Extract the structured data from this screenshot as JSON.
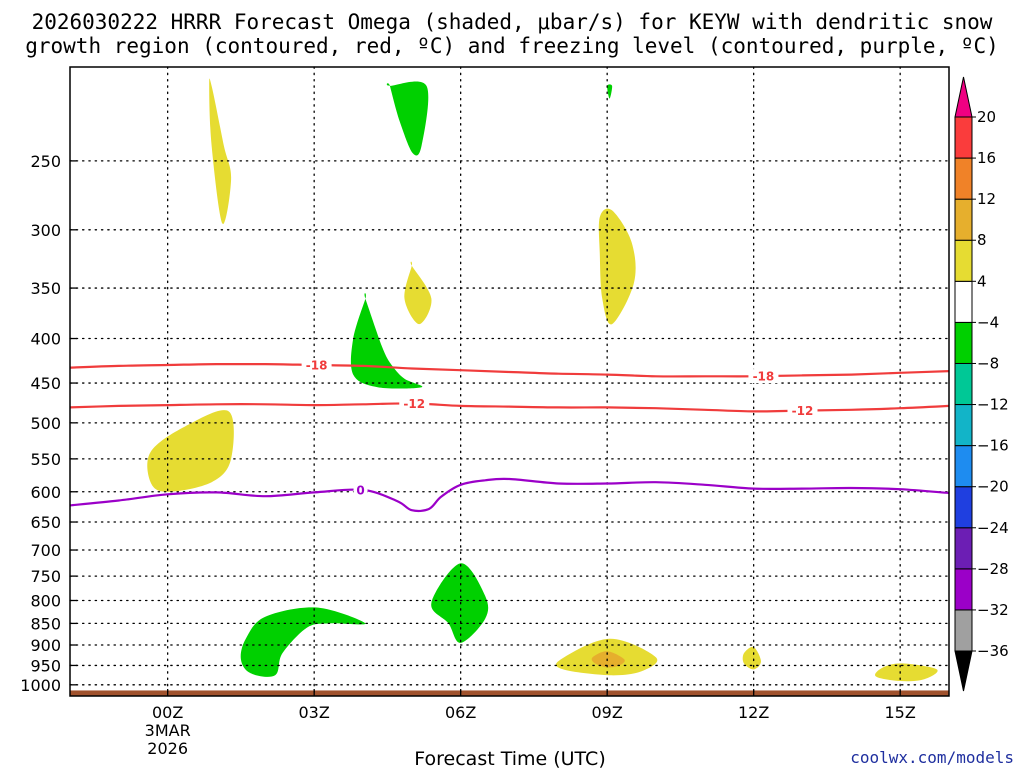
{
  "chart_data": {
    "type": "time-height cross section (shaded + contoured)",
    "title": "2026030222 HRRR Forecast Omega (shaded, μbar/s) for KEYW with dendritic snow growth region (contoured, red, ºC) and freezing level (contoured, purple, ºC)",
    "title_lines": [
      "2026030222 HRRR Forecast Omega (shaded, μbar/s) for KEYW with dendritic snow",
      "growth region (contoured, red, ºC) and freezing level (contoured, purple, ºC)"
    ],
    "xlabel": "Forecast Time (UTC)",
    "ylabel": "",
    "credit": "coolwx.com/models",
    "xlim_hours": [
      -2,
      16
    ],
    "ylim_hpa": [
      1030,
      195
    ],
    "y_ticks": [
      250,
      300,
      350,
      400,
      450,
      500,
      550,
      600,
      650,
      700,
      750,
      800,
      850,
      900,
      950,
      1000
    ],
    "x_ticks": [
      {
        "hour": 0,
        "label": "00Z",
        "sub": [
          "3MAR",
          "2026"
        ]
      },
      {
        "hour": 3,
        "label": "03Z",
        "sub": []
      },
      {
        "hour": 6,
        "label": "06Z",
        "sub": []
      },
      {
        "hour": 9,
        "label": "09Z",
        "sub": []
      },
      {
        "hour": 12,
        "label": "12Z",
        "sub": []
      },
      {
        "hour": 15,
        "label": "15Z",
        "sub": []
      }
    ],
    "grid": true,
    "ground": {
      "top_hpa": 1015,
      "color": "#a0522d"
    },
    "colorbar": {
      "levels": [
        -36,
        -32,
        -28,
        -24,
        -20,
        -16,
        -12,
        -8,
        -4,
        4,
        8,
        12,
        16,
        20
      ],
      "colors": [
        "#000000",
        "#a0a0a0",
        "#9b00c8",
        "#6c1eb4",
        "#1f3fe0",
        "#1e8cf0",
        "#12b4c8",
        "#00c896",
        "#00d000",
        "#ffffff",
        "#e6dc32",
        "#e6af2d",
        "#f08228",
        "#fa3c3c",
        "#f00082"
      ]
    },
    "omega_regions": [
      {
        "value": 6,
        "color": "#e6dc32",
        "points": [
          [
            0.9,
            205
          ],
          [
            1.15,
            240
          ],
          [
            1.3,
            262
          ],
          [
            1.12,
            295
          ],
          [
            0.9,
            240
          ],
          [
            0.85,
            205
          ]
        ]
      },
      {
        "value": -6,
        "color": "#00d000",
        "points": [
          [
            4.55,
            205
          ],
          [
            5.3,
            205
          ],
          [
            5.2,
            240
          ],
          [
            5.02,
            245
          ],
          [
            4.75,
            225
          ],
          [
            4.55,
            205
          ]
        ]
      },
      {
        "value": -6,
        "color": "#00d000",
        "points": [
          [
            9.0,
            205
          ],
          [
            9.1,
            205
          ],
          [
            9.05,
            212
          ]
        ]
      },
      {
        "value": 6,
        "color": "#e6dc32",
        "points": [
          [
            5.0,
            330
          ],
          [
            5.4,
            360
          ],
          [
            5.15,
            385
          ],
          [
            4.85,
            360
          ],
          [
            5.0,
            330
          ]
        ]
      },
      {
        "value": 6,
        "color": "#e6dc32",
        "points": [
          [
            8.85,
            290
          ],
          [
            9.1,
            285
          ],
          [
            9.5,
            310
          ],
          [
            9.55,
            345
          ],
          [
            9.1,
            385
          ],
          [
            8.9,
            360
          ],
          [
            8.85,
            320
          ]
        ]
      },
      {
        "value": -6,
        "color": "#00d000",
        "points": [
          [
            4.05,
            360
          ],
          [
            4.4,
            410
          ],
          [
            4.6,
            430
          ],
          [
            4.85,
            445
          ],
          [
            5.2,
            455
          ],
          [
            4.3,
            455
          ],
          [
            3.8,
            440
          ],
          [
            3.8,
            400
          ],
          [
            4.05,
            360
          ]
        ]
      },
      {
        "value": 6,
        "color": "#e6dc32",
        "points": [
          [
            0.35,
            505
          ],
          [
            1.25,
            485
          ],
          [
            1.3,
            550
          ],
          [
            0.9,
            585
          ],
          [
            0.0,
            600
          ],
          [
            -0.35,
            585
          ],
          [
            -0.35,
            540
          ]
        ]
      },
      {
        "value": -6,
        "color": "#00d000",
        "points": [
          [
            2.0,
            835
          ],
          [
            3.05,
            815
          ],
          [
            4.05,
            850
          ],
          [
            3.3,
            850
          ],
          [
            2.85,
            860
          ],
          [
            2.35,
            920
          ],
          [
            2.2,
            975
          ],
          [
            1.7,
            970
          ],
          [
            1.5,
            935
          ],
          [
            1.6,
            885
          ]
        ]
      },
      {
        "value": -6,
        "color": "#00d000",
        "points": [
          [
            6.0,
            725
          ],
          [
            6.5,
            790
          ],
          [
            6.5,
            840
          ],
          [
            6.0,
            895
          ],
          [
            5.75,
            850
          ],
          [
            5.4,
            805
          ]
        ]
      },
      {
        "value": 6,
        "color": "#e6dc32",
        "points": [
          [
            9.05,
            885
          ],
          [
            10.0,
            930
          ],
          [
            9.7,
            965
          ],
          [
            9.05,
            975
          ],
          [
            8.1,
            960
          ],
          [
            8.05,
            935
          ]
        ]
      },
      {
        "value": 10,
        "color": "#e6af2d",
        "points": [
          [
            9.0,
            915
          ],
          [
            9.35,
            935
          ],
          [
            9.25,
            950
          ],
          [
            9.0,
            955
          ],
          [
            8.75,
            945
          ],
          [
            8.7,
            930
          ]
        ]
      },
      {
        "value": 6,
        "color": "#e6dc32",
        "points": [
          [
            12.0,
            905
          ],
          [
            12.15,
            940
          ],
          [
            12.0,
            960
          ],
          [
            11.8,
            945
          ],
          [
            11.8,
            920
          ]
        ]
      },
      {
        "value": 6,
        "color": "#e6dc32",
        "points": [
          [
            15.05,
            945
          ],
          [
            15.75,
            960
          ],
          [
            15.5,
            985
          ],
          [
            15.0,
            990
          ],
          [
            14.5,
            978
          ],
          [
            14.65,
            955
          ]
        ]
      }
    ],
    "contours": [
      {
        "label": "-18",
        "color": "#f03c3c",
        "label_hours": [
          3.05,
          12.2
        ],
        "points": [
          [
            -2,
            432
          ],
          [
            -1,
            430
          ],
          [
            0,
            429
          ],
          [
            1,
            428
          ],
          [
            2,
            428
          ],
          [
            3,
            429
          ],
          [
            4,
            430
          ],
          [
            5,
            433
          ],
          [
            6,
            435
          ],
          [
            7,
            437
          ],
          [
            8,
            439
          ],
          [
            9,
            440
          ],
          [
            10,
            442
          ],
          [
            11,
            442
          ],
          [
            12,
            442
          ],
          [
            13,
            441
          ],
          [
            14,
            440
          ],
          [
            15,
            438
          ],
          [
            16,
            436
          ]
        ]
      },
      {
        "label": "-12",
        "color": "#f03c3c",
        "label_hours": [
          5.05,
          13.0
        ],
        "points": [
          [
            -2,
            480
          ],
          [
            -1,
            478
          ],
          [
            0,
            477
          ],
          [
            1,
            476
          ],
          [
            2,
            476
          ],
          [
            3,
            477
          ],
          [
            4,
            476
          ],
          [
            5,
            475
          ],
          [
            6,
            478
          ],
          [
            7,
            479
          ],
          [
            8,
            480
          ],
          [
            9,
            480
          ],
          [
            10,
            481
          ],
          [
            11,
            483
          ],
          [
            12,
            485
          ],
          [
            13,
            484
          ],
          [
            14,
            483
          ],
          [
            15,
            481
          ],
          [
            16,
            478
          ]
        ]
      },
      {
        "label": "0",
        "color": "#9b00c8",
        "label_hours": [
          3.95
        ],
        "points": [
          [
            -2,
            622
          ],
          [
            -1,
            614
          ],
          [
            0,
            604
          ],
          [
            1,
            601
          ],
          [
            2,
            607
          ],
          [
            3,
            601
          ],
          [
            4,
            597
          ],
          [
            4.7,
            615
          ],
          [
            5.0,
            630
          ],
          [
            5.35,
            628
          ],
          [
            5.6,
            608
          ],
          [
            6,
            589
          ],
          [
            6.5,
            582
          ],
          [
            7,
            580
          ],
          [
            8,
            587
          ],
          [
            9,
            587
          ],
          [
            10,
            585
          ],
          [
            11,
            589
          ],
          [
            12,
            595
          ],
          [
            13,
            595
          ],
          [
            14,
            594
          ],
          [
            15,
            596
          ],
          [
            16,
            602
          ]
        ]
      }
    ]
  }
}
